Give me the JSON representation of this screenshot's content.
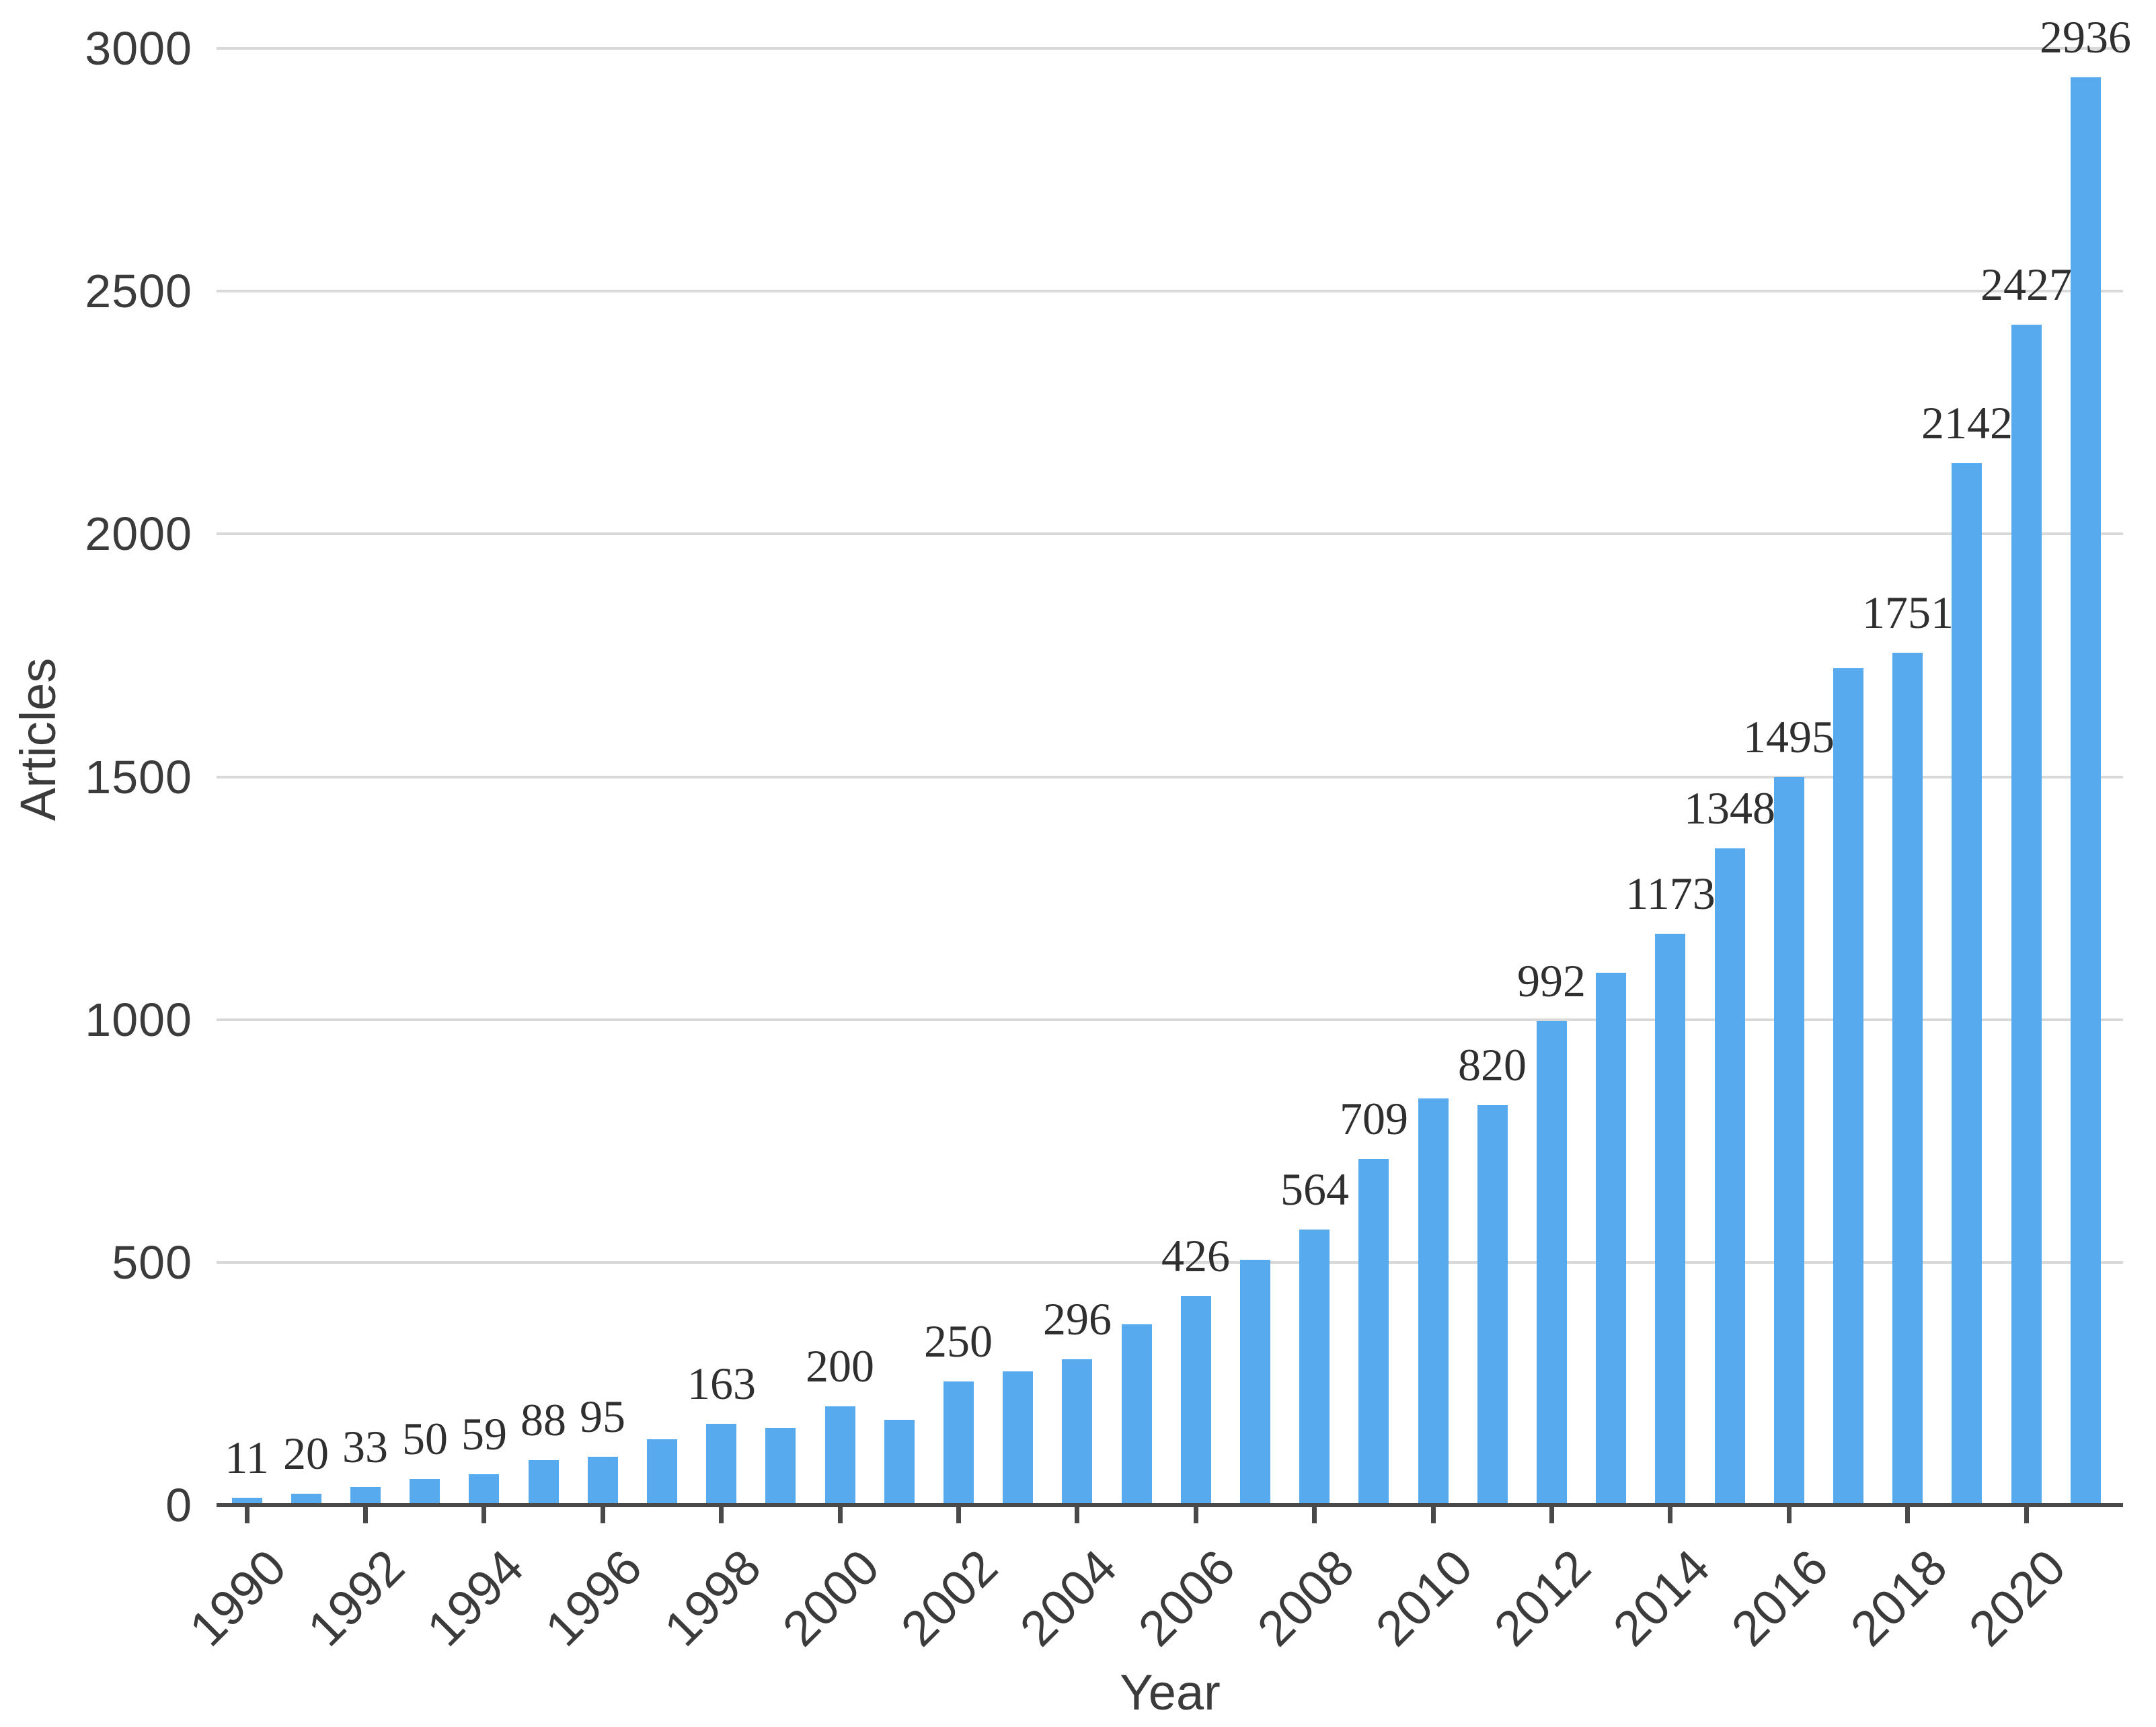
{
  "chart_data": {
    "type": "bar",
    "title": "",
    "xlabel": "Year",
    "ylabel": "Articles",
    "x": [
      1990,
      1991,
      1992,
      1993,
      1994,
      1995,
      1996,
      1997,
      1998,
      1999,
      2000,
      2001,
      2002,
      2003,
      2004,
      2005,
      2006,
      2007,
      2008,
      2009,
      2010,
      2011,
      2012,
      2013,
      2014,
      2015,
      2016,
      2017,
      2018,
      2019,
      2020,
      2021
    ],
    "values": [
      11,
      20,
      33,
      50,
      59,
      88,
      95,
      132,
      163,
      155,
      200,
      172,
      250,
      272,
      296,
      368,
      426,
      501,
      564,
      709,
      833,
      820,
      992,
      1092,
      1173,
      1348,
      1495,
      1719,
      1751,
      2142,
      2427,
      2936
    ],
    "bar_labels": [
      "11",
      "20",
      "33",
      "50",
      "59",
      "88",
      "95",
      "",
      "163",
      "",
      "200",
      "",
      "250",
      "",
      "296",
      "",
      "426",
      "",
      "564",
      "709",
      "",
      "820",
      "992",
      "",
      "1173",
      "1348",
      "1495",
      "",
      "1751",
      "2142",
      "2427",
      "2936"
    ],
    "y_ticks": [
      0,
      500,
      1000,
      1500,
      2000,
      2500,
      3000
    ],
    "x_tick_years": [
      1990,
      1992,
      1994,
      1996,
      1998,
      2000,
      2002,
      2004,
      2006,
      2008,
      2010,
      2012,
      2014,
      2016,
      2018,
      2020
    ],
    "ylim": [
      0,
      3000
    ],
    "grid": "horizontal",
    "legend": "none",
    "colors": {
      "bar": "#57aaee",
      "gridline": "#d9d9d9",
      "axis_line": "#494949",
      "tick_mark": "#494949",
      "value_label": "#2f2f2f",
      "tick_label": "#3b3b3b",
      "axis_title": "#3b3b3b",
      "background": "#ffffff"
    }
  }
}
